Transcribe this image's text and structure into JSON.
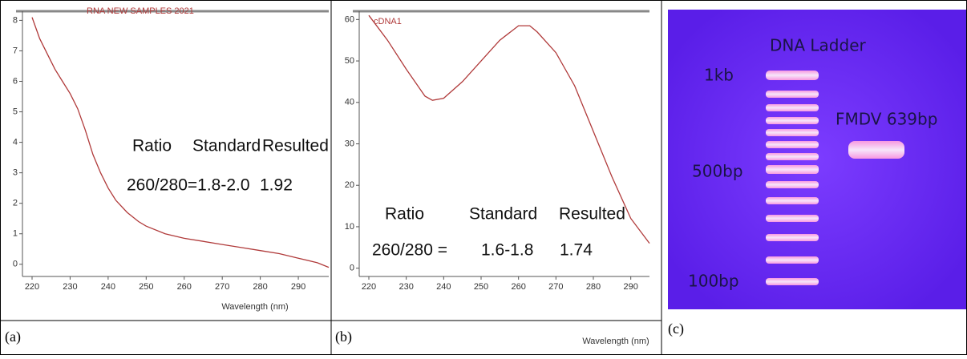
{
  "chart_data": [
    {
      "type": "line",
      "title": "RNA NEW SAMPLES 2021",
      "xlabel": "Wavelength (nm)",
      "panel_label": "(a)",
      "x": [
        220,
        222,
        224,
        226,
        228,
        230,
        232,
        234,
        236,
        238,
        240,
        242,
        245,
        248,
        250,
        255,
        260,
        265,
        270,
        275,
        280,
        285,
        290,
        295,
        298
      ],
      "values": [
        8.1,
        7.4,
        6.9,
        6.4,
        6.0,
        5.6,
        5.1,
        4.4,
        3.6,
        3.0,
        2.5,
        2.1,
        1.7,
        1.4,
        1.25,
        1.0,
        0.85,
        0.75,
        0.65,
        0.55,
        0.45,
        0.35,
        0.2,
        0.05,
        -0.1
      ],
      "color": "#b03a3a",
      "xlim": [
        220,
        298
      ],
      "xticks": [
        220,
        230,
        240,
        250,
        260,
        270,
        280,
        290
      ],
      "ylim": [
        -0.4,
        8.3
      ],
      "yticks": [
        0,
        1,
        2,
        3,
        4,
        5,
        6,
        7,
        8
      ],
      "annotations": [
        "Ratio",
        "Standard",
        "Resulted",
        "260/280=1.8-2.0",
        "1.92"
      ]
    },
    {
      "type": "line",
      "title": "cDNA1",
      "xlabel": "Wavelength (nm)",
      "panel_label": "(b)",
      "x": [
        220,
        225,
        230,
        235,
        237,
        240,
        245,
        250,
        255,
        260,
        263,
        265,
        270,
        275,
        280,
        285,
        290,
        295
      ],
      "values": [
        61,
        55,
        48,
        41.5,
        40.5,
        41,
        45,
        50,
        55,
        58.5,
        58.5,
        57,
        52,
        44,
        33,
        22,
        12,
        6
      ],
      "color": "#b03a3a",
      "xlim": [
        220,
        295
      ],
      "xticks": [
        220,
        230,
        240,
        250,
        260,
        270,
        280,
        290
      ],
      "ylim": [
        -2,
        62
      ],
      "yticks": [
        0,
        10,
        20,
        30,
        40,
        50,
        60
      ],
      "annotations": [
        "Ratio",
        "Standard",
        "Resulted",
        "260/280 =",
        "1.6-1.8",
        "1.74"
      ]
    }
  ],
  "gel": {
    "panel_label": "(c)",
    "labels": [
      "DNA Ladder",
      "1kb",
      "FMDV 639bp",
      "500bp",
      "100bp"
    ]
  }
}
